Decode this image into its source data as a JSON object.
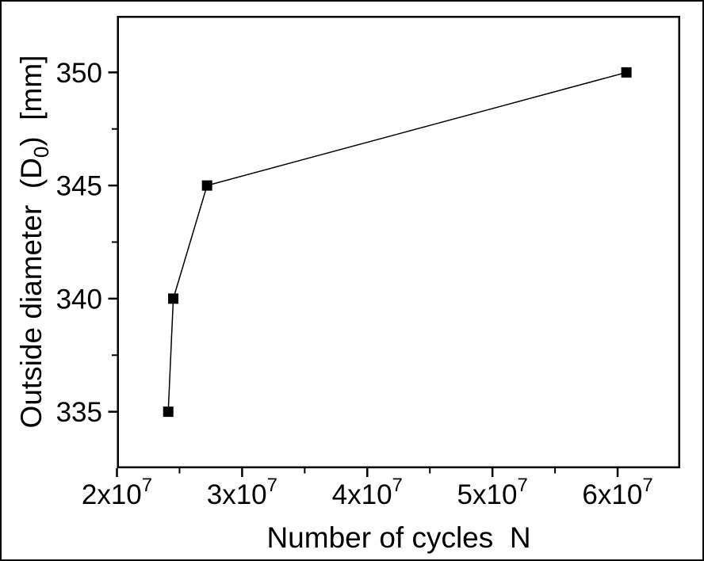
{
  "frame": {
    "background_color": "#ffffff",
    "border_color": "#000000",
    "axis_color": "#000000",
    "marker_color": "#000000",
    "line_color": "#000000"
  },
  "chart_data": {
    "type": "line",
    "title": "",
    "xlabel": "Number of cycles  N",
    "ylabel": "Outside diameter  (D0)  [mm]",
    "ylabel_parts": {
      "pre": "Outside diameter  (D",
      "sub": "0",
      "post": ")  [mm]"
    },
    "grid": false,
    "legend": "none",
    "marker": "filled-square",
    "xlim": [
      20000000,
      65000000
    ],
    "ylim": [
      332.5,
      352.5
    ],
    "series": [
      {
        "name": "outside-diameter-vs-cycles",
        "x": [
          24100000,
          24500000,
          27200000,
          60700000
        ],
        "y": [
          335,
          340,
          345,
          350
        ]
      }
    ],
    "x_ticks": [
      {
        "value": 20000000,
        "base": "2x10",
        "exp": "7"
      },
      {
        "value": 30000000,
        "base": "3x10",
        "exp": "7"
      },
      {
        "value": 40000000,
        "base": "4x10",
        "exp": "7"
      },
      {
        "value": 50000000,
        "base": "5x10",
        "exp": "7"
      },
      {
        "value": 60000000,
        "base": "6x10",
        "exp": "7"
      }
    ],
    "x_minor_ticks": [
      25000000,
      35000000,
      45000000,
      55000000
    ],
    "y_ticks": [
      {
        "value": 335,
        "label": "335"
      },
      {
        "value": 340,
        "label": "340"
      },
      {
        "value": 345,
        "label": "345"
      },
      {
        "value": 350,
        "label": "350"
      }
    ],
    "y_minor_ticks": [
      337.5,
      342.5,
      347.5
    ]
  }
}
